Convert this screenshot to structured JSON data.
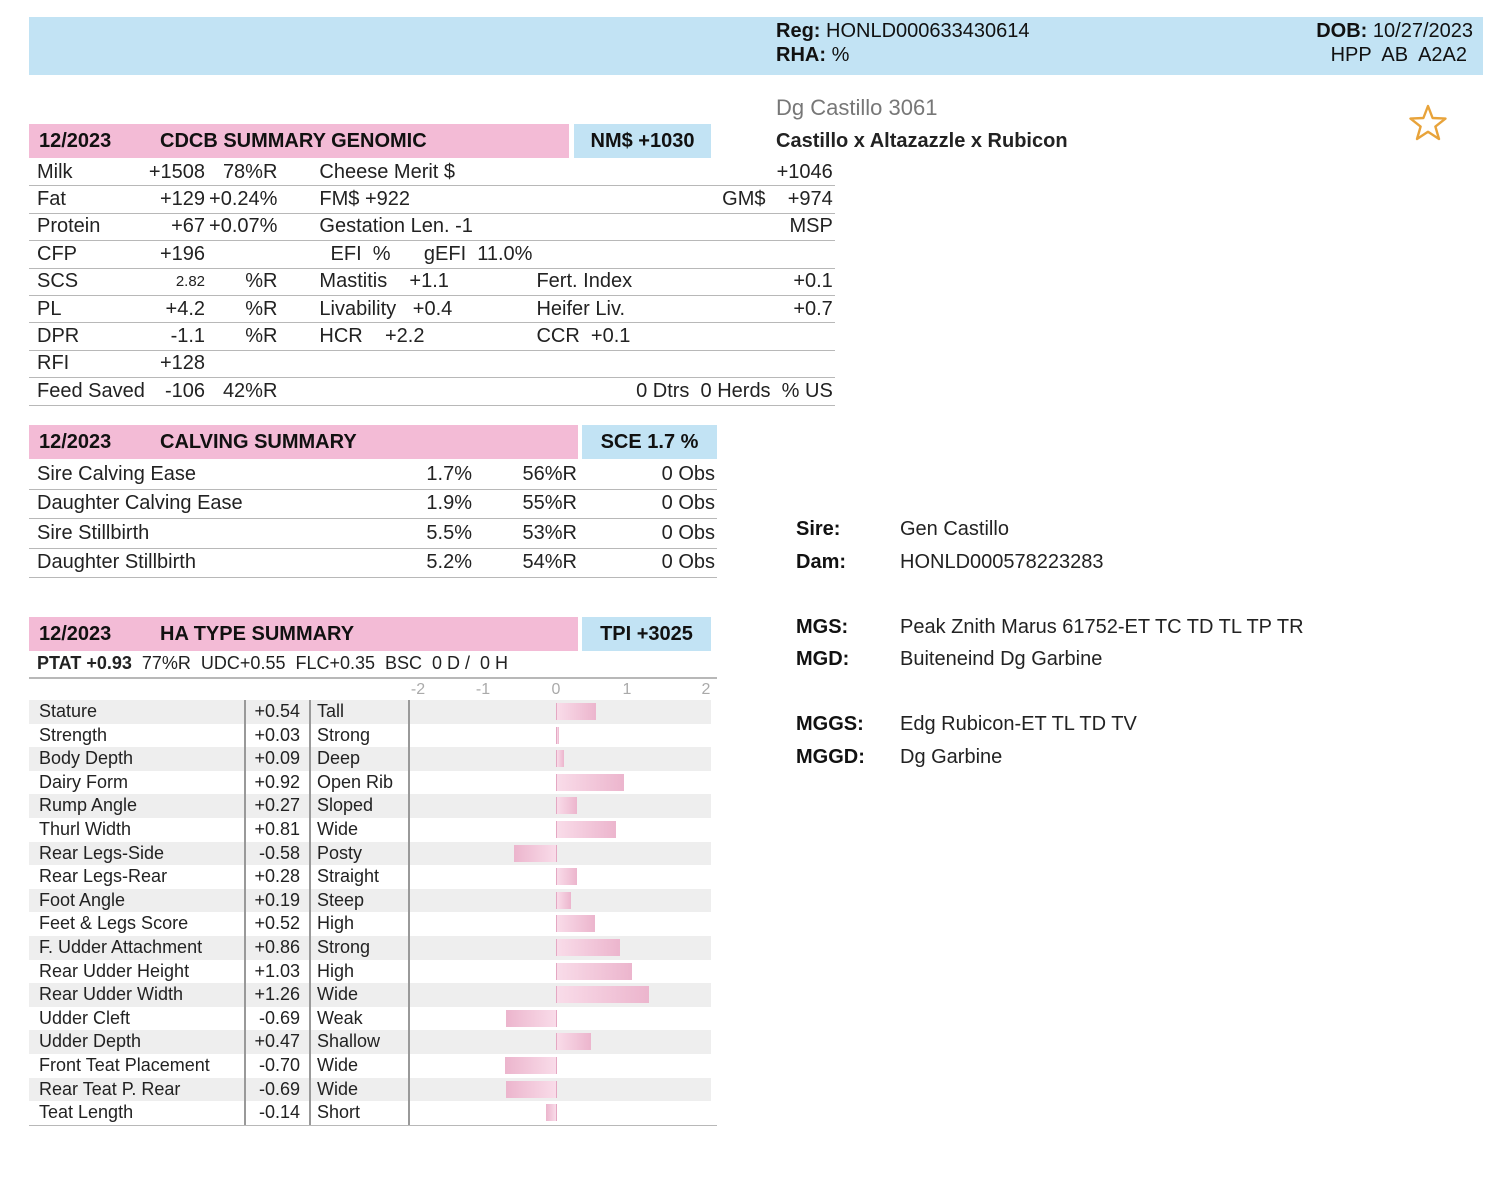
{
  "header": {
    "reg_label": "Reg:",
    "reg_value": "HONLD000633430614",
    "rha_label": "RHA:",
    "rha_value": "%",
    "dob_label": "DOB:",
    "dob_value": "10/27/2023",
    "codes": "HPP  AB  A2A2"
  },
  "animal": {
    "name": "Dg Castillo 3061",
    "pedigree_line": "Castillo x Altazazzle x Rubicon",
    "favorite_icon": "star-outline-icon",
    "star_color": "#e8a33a"
  },
  "genomic": {
    "date": "12/2023",
    "title": "CDCB SUMMARY GENOMIC",
    "badge": "NM$ +1030",
    "rows": [
      [
        "Milk",
        "+1508",
        "78%R",
        "Cheese Merit $",
        "",
        "+1046"
      ],
      [
        "Fat",
        "+129",
        "+0.24%",
        "FM$ +922",
        "",
        "GM$    +974"
      ],
      [
        "Protein",
        "+67",
        "+0.07%",
        "Gestation Len. -1",
        "",
        "MSP"
      ],
      [
        "CFP",
        "+196",
        "",
        "  EFI  %      gEFI  11.0%",
        "",
        ""
      ],
      [
        "SCS",
        "2.82",
        "%R",
        "Mastitis    +1.1",
        "Fert. Index",
        "+0.1"
      ],
      [
        "PL",
        "+4.2",
        "%R",
        "Livability   +0.4",
        "Heifer Liv.",
        "+0.7"
      ],
      [
        "DPR",
        "-1.1",
        "%R",
        "HCR    +2.2",
        "CCR  +0.1",
        ""
      ],
      [
        "RFI",
        "+128",
        "",
        "",
        "",
        ""
      ],
      [
        "Feed Saved",
        "-106",
        "42%R",
        "",
        "",
        "0 Dtrs  0 Herds  % US"
      ]
    ]
  },
  "calving": {
    "date": "12/2023",
    "title": "CALVING SUMMARY",
    "badge": "SCE 1.7 %",
    "rows": [
      [
        "Sire Calving Ease",
        "1.7%",
        "56%R",
        "0 Obs"
      ],
      [
        "Daughter Calving Ease",
        "1.9%",
        "55%R",
        "0 Obs"
      ],
      [
        "Sire Stillbirth",
        "5.5%",
        "53%R",
        "0 Obs"
      ],
      [
        "Daughter Stillbirth",
        "5.2%",
        "54%R",
        "0 Obs"
      ]
    ]
  },
  "type": {
    "date": "12/2023",
    "title": "HA TYPE SUMMARY",
    "badge": "TPI +3025",
    "ptat": "PTAT +0.93",
    "ptat_rest": "77%R  UDC+0.55  FLC+0.35  BSC  0 D /  0 H",
    "ticks": [
      "-2",
      "-1",
      "0",
      "1",
      "2"
    ],
    "bar_color": "#ecb5cd"
  },
  "chart_data": {
    "type": "bar",
    "orientation": "horizontal",
    "xlim": [
      -2,
      2
    ],
    "x_ticks": [
      "-2",
      "-1",
      "0",
      "1",
      "2"
    ],
    "categories": [
      "Stature",
      "Strength",
      "Body Depth",
      "Dairy Form",
      "Rump Angle",
      "Thurl Width",
      "Rear Legs-Side",
      "Rear Legs-Rear",
      "Foot Angle",
      "Feet & Legs Score",
      "F. Udder Attachment",
      "Rear Udder Height",
      "Rear Udder Width",
      "Udder Cleft",
      "Udder Depth",
      "Front Teat Placement",
      "Rear Teat P. Rear",
      "Teat Length"
    ],
    "value_labels": [
      "+0.54",
      "+0.03",
      "+0.09",
      "+0.92",
      "+0.27",
      "+0.81",
      "-0.58",
      "+0.28",
      "+0.19",
      "+0.52",
      "+0.86",
      "+1.03",
      "+1.26",
      "-0.69",
      "+0.47",
      "-0.70",
      "-0.69",
      "-0.14"
    ],
    "values": [
      0.54,
      0.03,
      0.09,
      0.92,
      0.27,
      0.81,
      -0.58,
      0.28,
      0.19,
      0.52,
      0.86,
      1.03,
      1.26,
      -0.69,
      0.47,
      -0.7,
      -0.69,
      -0.14
    ],
    "descriptors": [
      "Tall",
      "Strong",
      "Deep",
      "Open Rib",
      "Sloped",
      "Wide",
      "Posty",
      "Straight",
      "Steep",
      "High",
      "Strong",
      "High",
      "Wide",
      "Weak",
      "Shallow",
      "Wide",
      "Wide",
      "Short"
    ]
  },
  "pedigree": {
    "sire_label": "Sire:",
    "sire": "Gen Castillo",
    "dam_label": "Dam:",
    "dam": "HONLD000578223283",
    "mgs_label": "MGS:",
    "mgs": "Peak Znith Marus 61752-ET TC TD TL TP TR",
    "mgd_label": "MGD:",
    "mgd": "Buiteneind Dg Garbine",
    "mggs_label": "MGGS:",
    "mggs": "Edg Rubicon-ET TL TD TV",
    "mggd_label": "MGGD:",
    "mggd": "Dg Garbine"
  }
}
